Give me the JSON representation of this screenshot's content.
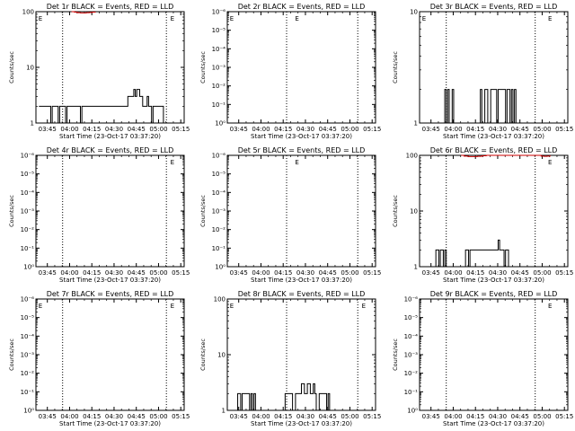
{
  "chart_data": [
    {
      "type": "line",
      "title": "Det 1r BLACK = Events, RED = LLD",
      "xlabel": "Start Time (23-Oct-17 03:37:20)",
      "ylabel": "Counts/sec",
      "y_scale": "log",
      "ylim": [
        1,
        100
      ],
      "yticks": [
        "1",
        "10",
        "100"
      ],
      "xticks": [
        "03:45",
        "04:00",
        "04:15",
        "04:30",
        "04:45",
        "05:00",
        "05:15"
      ],
      "x_minutes_range": [
        0,
        100
      ],
      "dotted_vlines_min": [
        18,
        88
      ],
      "series": [
        {
          "color": "#000000",
          "points": [
            [
              2,
              2
            ],
            [
              8,
              2
            ],
            [
              10,
              1
            ],
            [
              11,
              2
            ],
            [
              15,
              1
            ],
            [
              16,
              2
            ],
            [
              18,
              2
            ],
            [
              20,
              1
            ],
            [
              21,
              2
            ],
            [
              24,
              2
            ],
            [
              28,
              2
            ],
            [
              30,
              1
            ],
            [
              31,
              2
            ],
            [
              35,
              2
            ],
            [
              40,
              2
            ],
            [
              45,
              2
            ],
            [
              50,
              2
            ],
            [
              55,
              2
            ],
            [
              60,
              2
            ],
            [
              62,
              3
            ],
            [
              64,
              3
            ],
            [
              66,
              4
            ],
            [
              67,
              3
            ],
            [
              68,
              4
            ],
            [
              70,
              3
            ],
            [
              72,
              2
            ],
            [
              75,
              3
            ],
            [
              76,
              2
            ],
            [
              78,
              1
            ],
            [
              79,
              2
            ],
            [
              82,
              2
            ],
            [
              85,
              2
            ],
            [
              86,
              1
            ]
          ]
        },
        {
          "color": "#cc0000",
          "points": [
            [
              24,
              100
            ],
            [
              26,
              98
            ],
            [
              28,
              96
            ],
            [
              30,
              95
            ],
            [
              32,
              95
            ],
            [
              34,
              96
            ],
            [
              36,
              97
            ],
            [
              38,
              98
            ],
            [
              40,
              100
            ]
          ]
        }
      ],
      "markers": [
        {
          "label": "E",
          "x_min": 3
        },
        {
          "label": "E",
          "x_min": 92
        }
      ]
    },
    {
      "type": "line",
      "title": "Det 2r BLACK = Events, RED = LLD",
      "xlabel": "Start Time (23-Oct-17 03:37:20)",
      "ylabel": "Counts/sec",
      "y_scale": "log",
      "yticks": [
        "10⁰",
        "10⁻¹",
        "10⁻²",
        "10⁻³",
        "10⁻⁴",
        "10⁻⁵",
        "10⁻⁶"
      ],
      "xticks": [
        "03:45",
        "04:00",
        "04:15",
        "04:30",
        "04:45",
        "05:00",
        "05:15"
      ],
      "x_minutes_range": [
        0,
        100
      ],
      "dotted_vlines_min": [
        40,
        88
      ],
      "series": [],
      "markers": [
        {
          "label": "E",
          "x_min": 3
        },
        {
          "label": "E",
          "x_min": 47
        }
      ]
    },
    {
      "type": "line",
      "title": "Det 3r BLACK = Events, RED = LLD",
      "xlabel": "Start Time (23-Oct-17 03:37:20)",
      "ylabel": "Counts/sec",
      "y_scale": "log",
      "ylim": [
        1,
        10
      ],
      "yticks": [
        "1",
        "10"
      ],
      "xticks": [
        "03:45",
        "04:00",
        "04:15",
        "04:30",
        "04:45",
        "05:00",
        "05:15"
      ],
      "x_minutes_range": [
        0,
        100
      ],
      "dotted_vlines_min": [
        18,
        78
      ],
      "series": [
        {
          "color": "#000000",
          "points": [
            [
              16,
              1
            ],
            [
              17,
              2
            ],
            [
              18,
              1
            ],
            [
              19,
              2
            ],
            [
              20,
              1
            ],
            [
              22,
              2
            ],
            [
              23,
              1
            ],
            [
              24,
              1
            ],
            [
              40,
              1
            ],
            [
              41,
              2
            ],
            [
              42,
              1
            ],
            [
              44,
              2
            ],
            [
              45,
              2
            ],
            [
              46,
              1
            ],
            [
              48,
              2
            ],
            [
              50,
              2
            ],
            [
              52,
              1
            ],
            [
              53,
              2
            ],
            [
              56,
              2
            ],
            [
              58,
              1
            ],
            [
              59,
              2
            ],
            [
              61,
              1
            ],
            [
              62,
              2
            ],
            [
              63,
              1
            ],
            [
              64,
              2
            ],
            [
              65,
              1
            ]
          ]
        }
      ],
      "markers": [
        {
          "label": "E",
          "x_min": 3
        },
        {
          "label": "E",
          "x_min": 88
        }
      ]
    },
    {
      "type": "line",
      "title": "Det 4r BLACK = Events, RED = LLD",
      "xlabel": "Start Time (23-Oct-17 03:37:20)",
      "ylabel": "Counts/sec",
      "y_scale": "log",
      "yticks": [
        "10⁰",
        "10⁻¹",
        "10⁻²",
        "10⁻³",
        "10⁻⁴",
        "10⁻⁵",
        "10⁻⁶"
      ],
      "xticks": [
        "03:45",
        "04:00",
        "04:15",
        "04:30",
        "04:45",
        "05:00",
        "05:15"
      ],
      "x_minutes_range": [
        0,
        100
      ],
      "dotted_vlines_min": [
        18,
        88
      ],
      "series": [],
      "markers": [
        {
          "label": "E",
          "x_min": 92
        }
      ]
    },
    {
      "type": "line",
      "title": "Det 5r BLACK = Events, RED = LLD",
      "xlabel": "Start Time (23-Oct-17 03:37:20)",
      "ylabel": "Counts/sec",
      "y_scale": "log",
      "yticks": [
        "10⁰",
        "10⁻¹",
        "10⁻²",
        "10⁻³",
        "10⁻⁴",
        "10⁻⁵",
        "10⁻⁶"
      ],
      "xticks": [
        "03:45",
        "04:00",
        "04:15",
        "04:30",
        "04:45",
        "05:00",
        "05:15"
      ],
      "x_minutes_range": [
        0,
        100
      ],
      "dotted_vlines_min": [
        40,
        88
      ],
      "series": [],
      "markers": [
        {
          "label": "E",
          "x_min": 47
        }
      ]
    },
    {
      "type": "line",
      "title": "Det 6r BLACK = Events, RED = LLD",
      "xlabel": "Start Time (23-Oct-17 03:37:20)",
      "ylabel": "Counts/sec",
      "y_scale": "log",
      "ylim": [
        1,
        100
      ],
      "yticks": [
        "1",
        "10",
        "100"
      ],
      "xticks": [
        "03:45",
        "04:00",
        "04:15",
        "04:30",
        "04:45",
        "05:00",
        "05:15"
      ],
      "x_minutes_range": [
        0,
        100
      ],
      "dotted_vlines_min": [
        18,
        78
      ],
      "series": [
        {
          "color": "#000000",
          "points": [
            [
              10,
              1
            ],
            [
              11,
              2
            ],
            [
              13,
              1
            ],
            [
              14,
              2
            ],
            [
              16,
              1
            ],
            [
              17,
              2
            ],
            [
              18,
              1
            ],
            [
              30,
              1
            ],
            [
              31,
              2
            ],
            [
              33,
              1
            ],
            [
              34,
              2
            ],
            [
              40,
              2
            ],
            [
              45,
              2
            ],
            [
              50,
              2
            ],
            [
              52,
              2
            ],
            [
              53,
              3
            ],
            [
              54,
              2
            ],
            [
              56,
              2
            ],
            [
              57,
              1
            ],
            [
              58,
              2
            ],
            [
              60,
              1
            ]
          ]
        },
        {
          "color": "#cc0000",
          "points": [
            [
              28,
              100
            ],
            [
              30,
              97
            ],
            [
              33,
              95
            ],
            [
              36,
              95
            ],
            [
              39,
              96
            ],
            [
              42,
              98
            ],
            [
              45,
              100
            ],
            [
              80,
              100
            ],
            [
              82,
              97
            ],
            [
              84,
              96
            ],
            [
              86,
              97
            ],
            [
              88,
              100
            ]
          ]
        }
      ],
      "markers": [
        {
          "label": "E",
          "x_min": 88
        }
      ]
    },
    {
      "type": "line",
      "title": "Det 7r BLACK = Events, RED = LLD",
      "xlabel": "Start Time (23-Oct-17 03:37:20)",
      "ylabel": "Counts/sec",
      "y_scale": "log",
      "yticks": [
        "10⁰",
        "10⁻¹",
        "10⁻²",
        "10⁻³",
        "10⁻⁴",
        "10⁻⁵",
        "10⁻⁶"
      ],
      "xticks": [
        "03:45",
        "04:00",
        "04:15",
        "04:30",
        "04:45",
        "05:00",
        "05:15"
      ],
      "x_minutes_range": [
        0,
        100
      ],
      "dotted_vlines_min": [
        18,
        88
      ],
      "series": [],
      "markers": [
        {
          "label": "E",
          "x_min": 3
        },
        {
          "label": "E",
          "x_min": 92
        }
      ]
    },
    {
      "type": "line",
      "title": "Det 8r BLACK = Events, RED = LLD",
      "xlabel": "Start Time (23-Oct-17 03:37:20)",
      "ylabel": "Counts/sec",
      "y_scale": "log",
      "ylim": [
        1,
        100
      ],
      "yticks": [
        "1",
        "10",
        "100"
      ],
      "xticks": [
        "03:45",
        "04:00",
        "04:15",
        "04:30",
        "04:45",
        "05:00",
        "05:15"
      ],
      "x_minutes_range": [
        0,
        100
      ],
      "dotted_vlines_min": [
        40,
        88
      ],
      "series": [
        {
          "color": "#000000",
          "points": [
            [
              6,
              1
            ],
            [
              7,
              2
            ],
            [
              9,
              1
            ],
            [
              10,
              2
            ],
            [
              14,
              2
            ],
            [
              15,
              1
            ],
            [
              16,
              2
            ],
            [
              17,
              1
            ],
            [
              18,
              2
            ],
            [
              19,
              1
            ],
            [
              38,
              1
            ],
            [
              39,
              2
            ],
            [
              42,
              2
            ],
            [
              44,
              1
            ],
            [
              46,
              2
            ],
            [
              48,
              2
            ],
            [
              50,
              3
            ],
            [
              52,
              2
            ],
            [
              54,
              3
            ],
            [
              56,
              2
            ],
            [
              58,
              3
            ],
            [
              59,
              2
            ],
            [
              60,
              1
            ],
            [
              62,
              2
            ],
            [
              66,
              2
            ],
            [
              67,
              1
            ],
            [
              68,
              2
            ],
            [
              69,
              1
            ]
          ]
        }
      ],
      "markers": [
        {
          "label": "E",
          "x_min": 3
        },
        {
          "label": "E",
          "x_min": 92
        }
      ]
    },
    {
      "type": "line",
      "title": "Det 9r BLACK = Events, RED = LLD",
      "xlabel": "Start Time (23-Oct-17 03:37:20)",
      "ylabel": "Counts/sec",
      "y_scale": "log",
      "yticks": [
        "10⁰",
        "10⁻¹",
        "10⁻²",
        "10⁻³",
        "10⁻⁴",
        "10⁻⁵",
        "10⁻⁶"
      ],
      "xticks": [
        "03:45",
        "04:00",
        "04:15",
        "04:30",
        "04:45",
        "05:00",
        "05:15"
      ],
      "x_minutes_range": [
        0,
        100
      ],
      "dotted_vlines_min": [
        18,
        78
      ],
      "series": [],
      "markers": [
        {
          "label": "E",
          "x_min": 88
        }
      ]
    }
  ]
}
